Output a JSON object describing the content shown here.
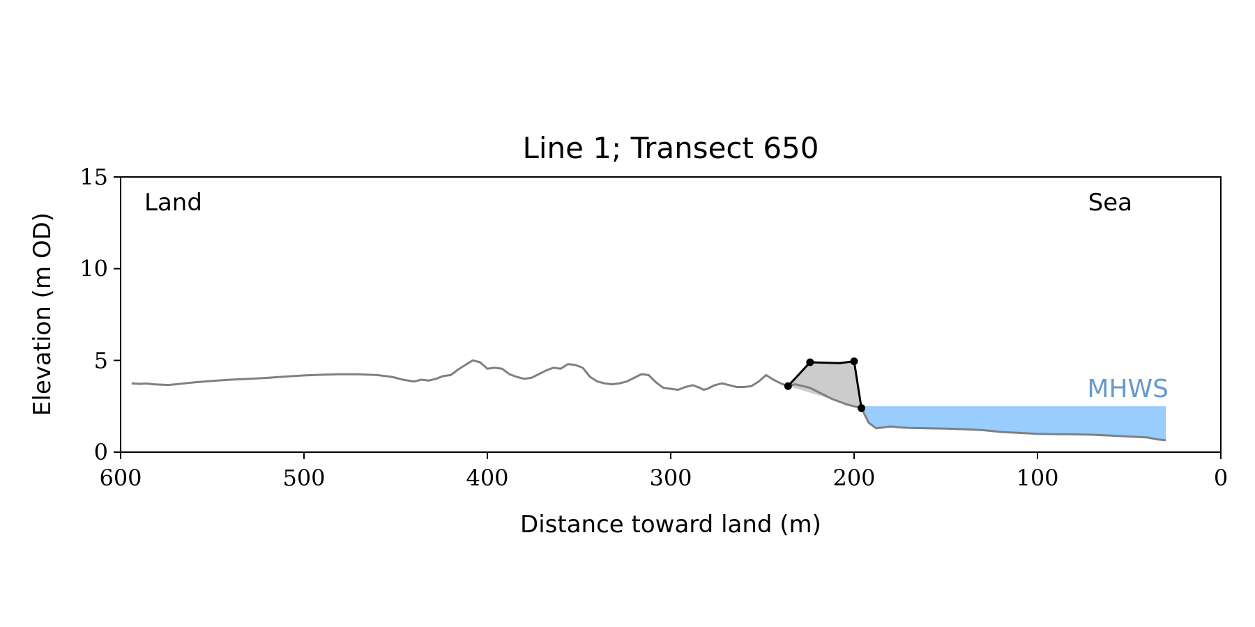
{
  "chart_data": {
    "type": "line",
    "title": "Line 1; Transect 650",
    "xlabel": "Distance toward land (m)",
    "ylabel": "Elevation (m OD)",
    "xlim": [
      600,
      0
    ],
    "ylim": [
      0,
      15
    ],
    "x_ticks": [
      600,
      500,
      400,
      300,
      200,
      100,
      0
    ],
    "y_ticks": [
      0,
      5,
      10,
      15
    ],
    "grid": false,
    "legend": "none",
    "annotations": {
      "land": "Land",
      "sea": "Sea",
      "mhws": "MHWS"
    },
    "colors": {
      "profile": "#808080",
      "dune": "#000000",
      "dune_fill": "#cccccc",
      "water": "#99ccff",
      "mhws_label": "#6699cc"
    },
    "mhws": {
      "level": 2.5,
      "x_start": 195.5,
      "x_end": 30
    },
    "series": [
      {
        "role": "profile",
        "x": [
          594,
          590,
          586,
          582,
          578,
          574,
          570,
          560,
          550,
          540,
          530,
          520,
          510,
          500,
          490,
          480,
          470,
          460,
          452,
          446,
          440,
          436,
          432,
          428,
          424,
          420,
          416,
          412,
          408,
          404,
          400,
          396,
          392,
          388,
          384,
          380,
          376,
          372,
          368,
          364,
          360,
          356,
          352,
          348,
          344,
          340,
          336,
          332,
          328,
          324,
          320,
          316,
          312,
          308,
          304,
          300,
          296,
          292,
          288,
          284,
          282,
          280,
          276,
          272,
          268,
          264,
          260,
          256,
          252,
          248,
          244,
          240,
          236,
          232,
          228,
          224,
          220,
          216,
          212,
          208,
          204,
          200,
          196,
          192,
          188,
          184,
          180,
          175,
          170,
          160,
          150,
          140,
          130,
          120,
          110,
          100,
          90,
          80,
          70,
          60,
          50,
          40,
          35,
          30
        ],
        "y": [
          3.75,
          3.72,
          3.74,
          3.7,
          3.68,
          3.66,
          3.7,
          3.8,
          3.88,
          3.95,
          4.0,
          4.05,
          4.12,
          4.18,
          4.22,
          4.25,
          4.24,
          4.2,
          4.1,
          3.95,
          3.85,
          3.95,
          3.9,
          4.0,
          4.15,
          4.2,
          4.5,
          4.75,
          5.0,
          4.9,
          4.55,
          4.6,
          4.55,
          4.25,
          4.1,
          4.0,
          4.05,
          4.25,
          4.45,
          4.6,
          4.55,
          4.8,
          4.75,
          4.6,
          4.1,
          3.85,
          3.75,
          3.7,
          3.75,
          3.85,
          4.05,
          4.25,
          4.2,
          3.8,
          3.5,
          3.45,
          3.4,
          3.55,
          3.65,
          3.5,
          3.4,
          3.45,
          3.65,
          3.75,
          3.65,
          3.55,
          3.55,
          3.6,
          3.85,
          4.2,
          3.95,
          3.75,
          3.6,
          3.7,
          3.6,
          3.5,
          3.3,
          3.1,
          2.9,
          2.75,
          2.6,
          2.5,
          2.4,
          1.6,
          1.3,
          1.35,
          1.4,
          1.35,
          1.32,
          1.3,
          1.28,
          1.25,
          1.2,
          1.1,
          1.05,
          1.0,
          0.98,
          0.97,
          0.95,
          0.9,
          0.85,
          0.8,
          0.7,
          0.65
        ]
      },
      {
        "role": "dune",
        "x": [
          236,
          224,
          208,
          200,
          196
        ],
        "y": [
          3.6,
          4.9,
          4.85,
          4.95,
          2.4
        ]
      }
    ],
    "dune_points": {
      "x": [
        236,
        224,
        200,
        196
      ],
      "y": [
        3.6,
        4.9,
        4.95,
        2.4
      ]
    }
  }
}
